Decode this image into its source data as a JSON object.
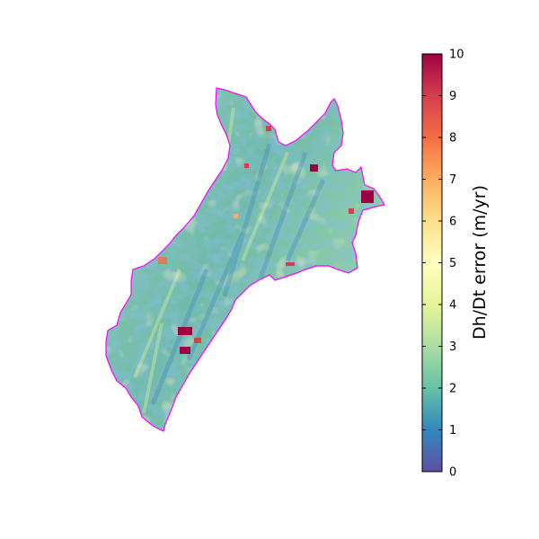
{
  "map": {
    "outline_color": "#ff00ff",
    "anomaly_color": "#9e0142"
  },
  "colorbar": {
    "label": "Dh/Dt error (m/yr)",
    "min": 0,
    "max": 10,
    "ticks": [
      "0",
      "1",
      "2",
      "3",
      "4",
      "5",
      "6",
      "7",
      "8",
      "9",
      "10"
    ],
    "colormap": "Spectral_r",
    "colors": [
      "#5e4fa2",
      "#3288bd",
      "#66c2a5",
      "#abdda4",
      "#e6f598",
      "#ffffbf",
      "#fee08b",
      "#fdae61",
      "#f46d43",
      "#d53e4f",
      "#9e0142"
    ]
  }
}
